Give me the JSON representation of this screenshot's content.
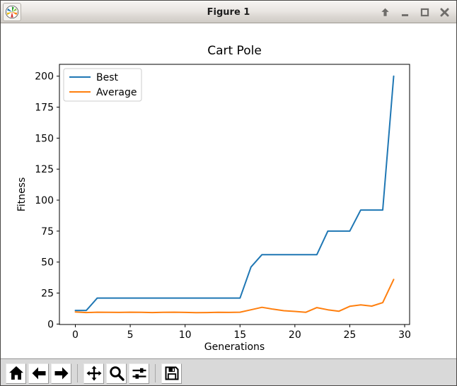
{
  "window": {
    "title": "Figure 1",
    "icon": "matplotlib-logo",
    "controls": [
      {
        "name": "shade",
        "icon": "shade-icon"
      },
      {
        "name": "minimize",
        "icon": "minimize-icon"
      },
      {
        "name": "maximize",
        "icon": "maximize-icon"
      },
      {
        "name": "close",
        "icon": "close-icon"
      }
    ]
  },
  "chart_data": {
    "type": "line",
    "title": "Cart Pole",
    "xlabel": "Generations",
    "ylabel": "Fitness",
    "x": [
      0,
      1,
      2,
      3,
      4,
      5,
      6,
      7,
      8,
      9,
      10,
      11,
      12,
      13,
      14,
      15,
      16,
      17,
      18,
      19,
      20,
      21,
      22,
      23,
      24,
      25,
      26,
      27,
      28,
      29
    ],
    "series": [
      {
        "name": "Best",
        "color": "#1f77b4",
        "values": [
          11,
          11,
          21,
          21,
          21,
          21,
          21,
          21,
          21,
          21,
          21,
          21,
          21,
          21,
          21,
          21,
          46,
          56,
          56,
          56,
          56,
          56,
          56,
          75,
          75,
          75,
          92,
          92,
          92,
          200
        ]
      },
      {
        "name": "Average",
        "color": "#ff7f0e",
        "values": [
          9.8,
          9.3,
          9.6,
          9.5,
          9.4,
          9.6,
          9.5,
          9.3,
          9.5,
          9.6,
          9.4,
          9.2,
          9.3,
          9.5,
          9.4,
          9.6,
          11.5,
          13.5,
          12.0,
          10.8,
          10.2,
          9.5,
          13.3,
          11.5,
          10.3,
          14.3,
          15.5,
          14.5,
          17.3,
          36.0
        ]
      }
    ],
    "xticks": [
      0,
      5,
      10,
      15,
      20,
      25,
      30
    ],
    "yticks": [
      0,
      25,
      50,
      75,
      100,
      125,
      150,
      175,
      200
    ],
    "xlim": [
      -1.45,
      30.45
    ],
    "ylim": [
      -0.35,
      209.55
    ],
    "legend_position": "upper left",
    "grid": false
  },
  "toolbar": {
    "items": [
      {
        "name": "home",
        "icon": "home-icon"
      },
      {
        "name": "back",
        "icon": "back-icon"
      },
      {
        "name": "forward",
        "icon": "forward-icon"
      },
      {
        "name": "separator"
      },
      {
        "name": "pan",
        "icon": "pan-icon"
      },
      {
        "name": "zoom",
        "icon": "zoom-icon"
      },
      {
        "name": "configure-subplots",
        "icon": "sliders-icon"
      },
      {
        "name": "separator"
      },
      {
        "name": "save",
        "icon": "save-icon"
      }
    ]
  },
  "colors": {
    "best_line": "#1f77b4",
    "average_line": "#ff7f0e",
    "toolbar_bg": "#d9d9d9",
    "titlebar_top": "#f6f4f2",
    "titlebar_bottom": "#cfcbc5",
    "control_glyph": "#6f6d6a"
  }
}
